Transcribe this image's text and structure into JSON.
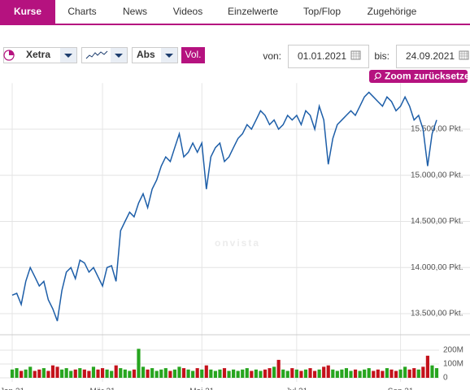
{
  "tabs": [
    "Kurse",
    "Charts",
    "News",
    "Videos",
    "Einzelwerte",
    "Top/Flop",
    "Zugehörige"
  ],
  "controls": {
    "exchange": "Xetra",
    "scale": "Abs",
    "volume": "Vol.",
    "from_label": "von:",
    "from": "01.01.2021",
    "to_label": "bis:",
    "to": "24.09.2021",
    "zoom": "Zoom zurücksetzen"
  },
  "watermark": "onvista",
  "chart_data": {
    "type": "line",
    "series": [
      {
        "name": "Kurs",
        "color": "#1d5ea8",
        "values": [
          13700,
          13720,
          13600,
          13850,
          14000,
          13900,
          13800,
          13850,
          13650,
          13550,
          13420,
          13750,
          13950,
          14000,
          13880,
          14080,
          14050,
          13950,
          14000,
          13900,
          13800,
          14000,
          14020,
          13850,
          14400,
          14500,
          14600,
          14550,
          14700,
          14800,
          14650,
          14850,
          14950,
          15100,
          15200,
          15150,
          15300,
          15450,
          15200,
          15250,
          15350,
          15250,
          15350,
          14850,
          15200,
          15300,
          15350,
          15150,
          15200,
          15300,
          15400,
          15450,
          15550,
          15500,
          15600,
          15700,
          15650,
          15550,
          15600,
          15500,
          15550,
          15650,
          15600,
          15650,
          15550,
          15700,
          15650,
          15500,
          15750,
          15600,
          15120,
          15400,
          15550,
          15600,
          15650,
          15700,
          15650,
          15750,
          15850,
          15900,
          15850,
          15800,
          15750,
          15850,
          15800,
          15700,
          15750,
          15850,
          15750,
          15600,
          15650,
          15500,
          15100,
          15450,
          15600
        ]
      },
      {
        "name": "Volumen",
        "axis": "y2",
        "colors": [
          "#27a51f",
          "#c4121b"
        ],
        "values": [
          60000000.0,
          70000000.0,
          50000000.0,
          60000000.0,
          80000000.0,
          50000000.0,
          60000000.0,
          70000000.0,
          50000000.0,
          90000000.0,
          80000000.0,
          60000000.0,
          70000000.0,
          50000000.0,
          60000000.0,
          70000000.0,
          60000000.0,
          50000000.0,
          80000000.0,
          60000000.0,
          70000000.0,
          60000000.0,
          50000000.0,
          90000000.0,
          70000000.0,
          60000000.0,
          50000000.0,
          60000000.0,
          210000000.0,
          80000000.0,
          60000000.0,
          70000000.0,
          50000000.0,
          60000000.0,
          70000000.0,
          50000000.0,
          60000000.0,
          80000000.0,
          70000000.0,
          60000000.0,
          50000000.0,
          70000000.0,
          60000000.0,
          90000000.0,
          60000000.0,
          50000000.0,
          60000000.0,
          70000000.0,
          50000000.0,
          60000000.0,
          50000000.0,
          60000000.0,
          70000000.0,
          50000000.0,
          60000000.0,
          50000000.0,
          60000000.0,
          70000000.0,
          80000000.0,
          130000000.0,
          60000000.0,
          50000000.0,
          70000000.0,
          60000000.0,
          50000000.0,
          60000000.0,
          70000000.0,
          50000000.0,
          60000000.0,
          80000000.0,
          90000000.0,
          60000000.0,
          50000000.0,
          60000000.0,
          70000000.0,
          50000000.0,
          60000000.0,
          50000000.0,
          60000000.0,
          70000000.0,
          50000000.0,
          60000000.0,
          50000000.0,
          70000000.0,
          60000000.0,
          50000000.0,
          60000000.0,
          80000000.0,
          60000000.0,
          70000000.0,
          60000000.0,
          80000000.0,
          160000000.0,
          90000000.0,
          70000000.0
        ]
      }
    ],
    "xlim": [
      0,
      94
    ],
    "xticks": [
      {
        "value": 0,
        "label": "Jan 21"
      },
      {
        "value": 20,
        "label": "Mär 21"
      },
      {
        "value": 42,
        "label": "Mai 21"
      },
      {
        "value": 63,
        "label": "Jul 21"
      },
      {
        "value": 86,
        "label": "Sep 21"
      }
    ],
    "ylim": [
      13300,
      16000
    ],
    "yticks": [
      {
        "value": 13500,
        "label": "13.500,00 Pkt."
      },
      {
        "value": 14000,
        "label": "14.000,00 Pkt."
      },
      {
        "value": 14500,
        "label": "14.500,00 Pkt."
      },
      {
        "value": 15000,
        "label": "15.000,00 Pkt."
      },
      {
        "value": 15500,
        "label": "15.500,00 Pkt."
      }
    ],
    "y2lim": [
      0,
      280000000.0
    ],
    "y2ticks": [
      {
        "value": 200000000.0,
        "label": "200M"
      },
      {
        "value": 100000000.0,
        "label": "100M"
      },
      0
    ],
    "grid": true
  }
}
